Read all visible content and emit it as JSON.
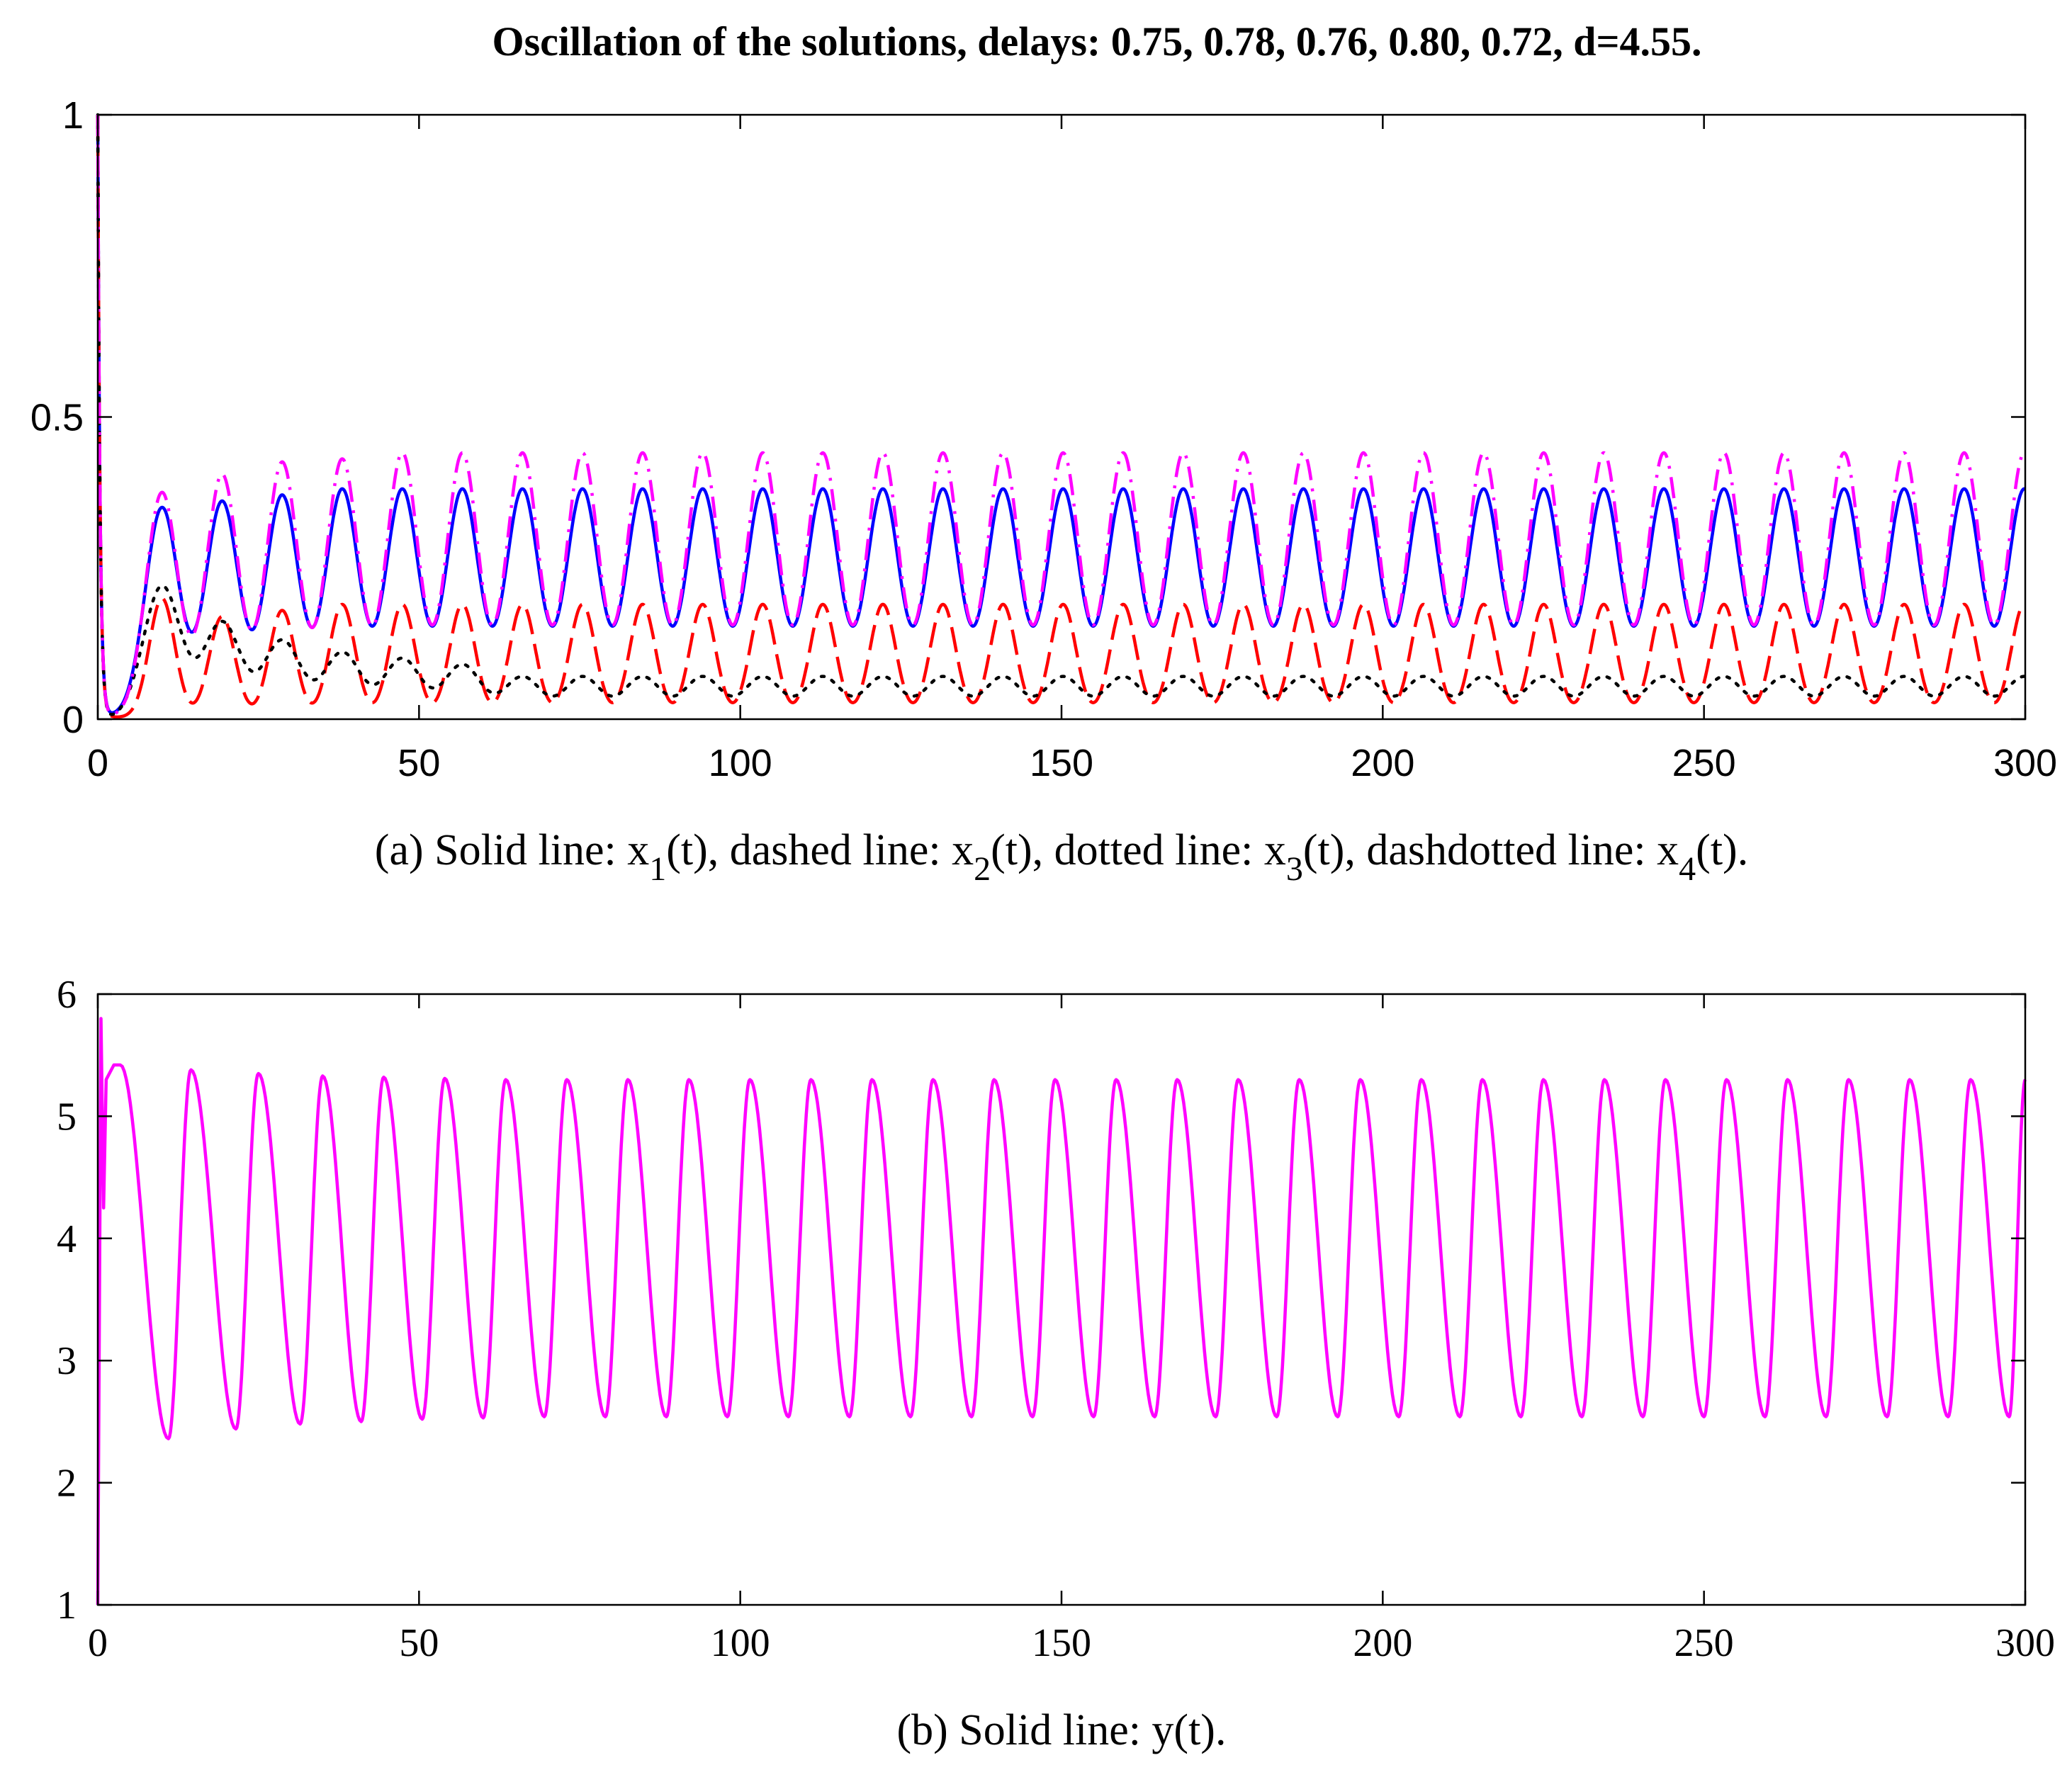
{
  "title": "Oscillation of the solutions, delays: 0.75, 0.78, 0.76, 0.80, 0.72, d=4.55.",
  "colors": {
    "x1": "#0000ff",
    "x2": "#ff0000",
    "x3": "#000000",
    "x4": "#ff00ff",
    "y": "#ff00ff"
  },
  "chart_data": [
    {
      "id": "a",
      "type": "line",
      "caption": {
        "prefix": "(a) Solid line: x",
        "sub1": "1",
        "mid1": "(t), dashed line: x",
        "sub2": "2",
        "mid2": "(t), dotted line: x",
        "sub3": "3",
        "mid3": "(t), dashdotted line: x",
        "sub4": "4",
        "suffix": "(t)."
      },
      "xlim": [
        0,
        300
      ],
      "ylim": [
        0,
        1
      ],
      "xticks": [
        "0",
        "50",
        "100",
        "150",
        "200",
        "250",
        "300"
      ],
      "xtick_values": [
        0,
        50,
        100,
        150,
        200,
        250,
        300
      ],
      "yticks": [
        "0",
        "0.5",
        "1"
      ],
      "ytick_values": [
        0,
        0.5,
        1
      ],
      "initial_value": 1,
      "period": 9.35,
      "first_peak_t": 10,
      "series": [
        {
          "name": "x_1(t)",
          "style": "solid",
          "first_peaks": [
            0.35,
            0.36,
            0.37
          ],
          "peak": 0.38,
          "trough": 0.005,
          "width": 2.6
        },
        {
          "name": "x_2(t)",
          "style": "dashed",
          "first_peaks": [
            0.2,
            0.17,
            0.18
          ],
          "peak": 0.19,
          "trough": 0.003,
          "width": 2.0
        },
        {
          "name": "x_3(t)",
          "style": "dotted",
          "first_peaks": [
            0.22,
            0.16,
            0.13,
            0.11,
            0.1,
            0.09
          ],
          "peak": 0.07,
          "trough": 0.0,
          "width": 2.9
        },
        {
          "name": "x_4(t)",
          "style": "dashdotted",
          "first_peaks": [
            0.375,
            0.405,
            0.425,
            0.43
          ],
          "peak": 0.44,
          "trough": 0.004,
          "width": 2.5
        }
      ]
    },
    {
      "id": "b",
      "type": "line",
      "caption": {
        "text": "(b) Solid line: y(t)."
      },
      "xlim": [
        0,
        300
      ],
      "ylim": [
        1,
        6
      ],
      "xticks": [
        "0",
        "50",
        "100",
        "150",
        "200",
        "250",
        "300"
      ],
      "xtick_values": [
        0,
        50,
        100,
        150,
        200,
        250,
        300
      ],
      "yticks": [
        "1",
        "2",
        "3",
        "4",
        "5",
        "6"
      ],
      "ytick_values": [
        1,
        2,
        3,
        4,
        5,
        6
      ],
      "initial_spike": [
        [
          0,
          1.0
        ],
        [
          0.5,
          5.8
        ],
        [
          0.9,
          4.25
        ],
        [
          1.3,
          5.3
        ],
        [
          2.5,
          5.42
        ]
      ],
      "maxima": [
        [
          3.5,
          5.42
        ],
        [
          14.5,
          5.38
        ],
        [
          25,
          5.35
        ],
        [
          35,
          5.33
        ],
        [
          44.5,
          5.32
        ],
        [
          54,
          5.31
        ],
        [
          63.5,
          5.3
        ],
        [
          73,
          5.3
        ],
        [
          82.5,
          5.3
        ],
        [
          92,
          5.3
        ],
        [
          101.5,
          5.3
        ],
        [
          111,
          5.3
        ],
        [
          120.5,
          5.3
        ],
        [
          130,
          5.3
        ],
        [
          139.5,
          5.3
        ],
        [
          149,
          5.3
        ],
        [
          158.5,
          5.3
        ],
        [
          168,
          5.3
        ],
        [
          177.5,
          5.3
        ],
        [
          187,
          5.3
        ],
        [
          196.5,
          5.3
        ],
        [
          206,
          5.3
        ],
        [
          215.5,
          5.3
        ],
        [
          225,
          5.3
        ],
        [
          234.5,
          5.3
        ],
        [
          244,
          5.3
        ],
        [
          253.5,
          5.3
        ],
        [
          263,
          5.3
        ],
        [
          272.5,
          5.3
        ],
        [
          282,
          5.3
        ],
        [
          291.5,
          5.3
        ]
      ],
      "minima": [
        [
          11,
          2.36
        ],
        [
          21.5,
          2.44
        ],
        [
          31.5,
          2.48
        ],
        [
          41,
          2.5
        ],
        [
          50.5,
          2.52
        ],
        [
          60,
          2.53
        ],
        [
          69.5,
          2.54
        ],
        [
          79,
          2.54
        ],
        [
          88.5,
          2.54
        ],
        [
          98,
          2.54
        ],
        [
          107.5,
          2.54
        ],
        [
          117,
          2.54
        ],
        [
          126.5,
          2.54
        ],
        [
          136,
          2.54
        ],
        [
          145.5,
          2.54
        ],
        [
          155,
          2.54
        ],
        [
          164.5,
          2.54
        ],
        [
          174,
          2.54
        ],
        [
          183.5,
          2.54
        ],
        [
          193,
          2.54
        ],
        [
          202.5,
          2.54
        ],
        [
          212,
          2.54
        ],
        [
          221.5,
          2.54
        ],
        [
          231,
          2.54
        ],
        [
          240.5,
          2.54
        ],
        [
          250,
          2.54
        ],
        [
          259.5,
          2.54
        ],
        [
          269,
          2.54
        ],
        [
          278.5,
          2.54
        ],
        [
          288,
          2.54
        ],
        [
          297.5,
          2.54
        ]
      ],
      "end_value": [
        300,
        5.3
      ]
    }
  ]
}
